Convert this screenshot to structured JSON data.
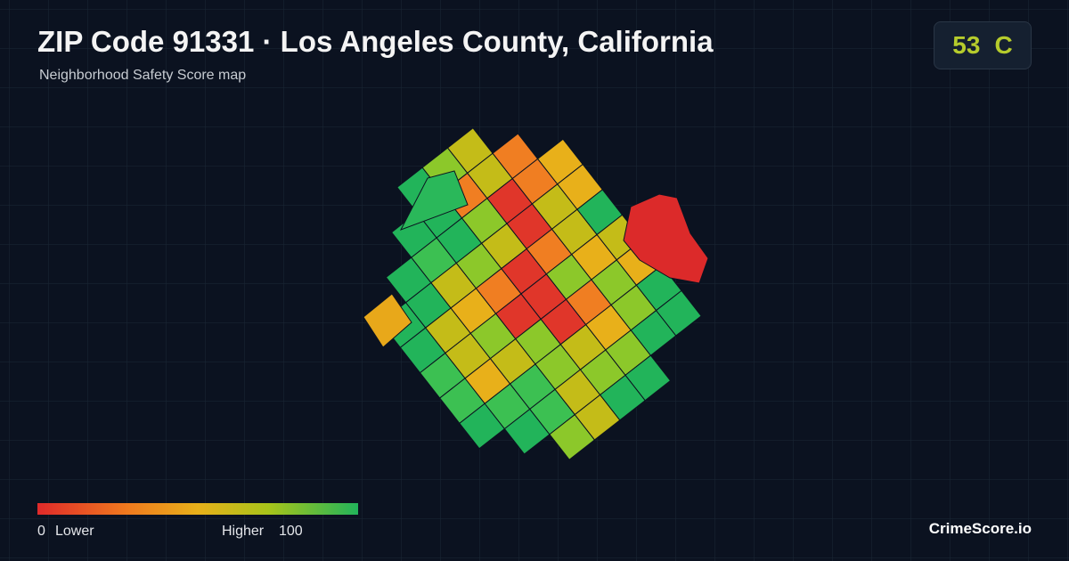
{
  "header": {
    "title": "ZIP Code 91331 · Los Angeles County, California",
    "subtitle": "Neighborhood Safety Score map"
  },
  "score": {
    "value": "53",
    "grade": "C"
  },
  "legend": {
    "min": "0",
    "min_label": "Lower",
    "max_label": "Higher",
    "max": "100"
  },
  "brand": "CrimeScore.io"
}
